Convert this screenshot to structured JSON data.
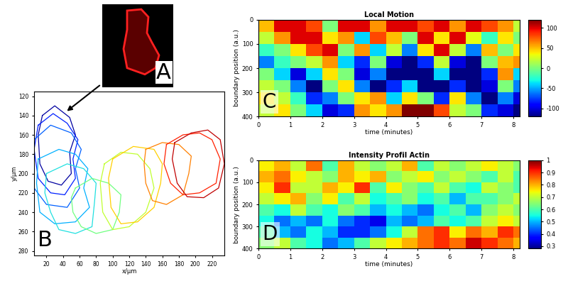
{
  "chart_data": [
    {
      "type": "image",
      "label": "A",
      "xlim": [
        0,
        100
      ],
      "ylim": [
        130,
        0
      ],
      "cell_outline": {
        "x": [
          35,
          55,
          65,
          63,
          70,
          80,
          75,
          60,
          35,
          30,
          35
        ],
        "y": [
          10,
          8,
          20,
          45,
          60,
          80,
          100,
          110,
          100,
          70,
          40
        ]
      }
    },
    {
      "type": "line",
      "label": "B",
      "xlabel": "x/μm",
      "ylabel": "y/μm",
      "xlim": [
        5,
        235
      ],
      "xticks": [
        20,
        40,
        60,
        80,
        100,
        120,
        140,
        160,
        180,
        200,
        220
      ],
      "ylim": [
        285,
        115
      ],
      "yticks": [
        120,
        140,
        160,
        180,
        200,
        220,
        240,
        260,
        280
      ],
      "series": [
        {
          "color": "#0000a0",
          "x": [
            15,
            30,
            48,
            55,
            48,
            50,
            38,
            22,
            12,
            10
          ],
          "y": [
            140,
            130,
            142,
            160,
            178,
            200,
            212,
            208,
            190,
            160
          ]
        },
        {
          "color": "#0020ff",
          "x": [
            10,
            28,
            45,
            58,
            52,
            55,
            42,
            25,
            10,
            5
          ],
          "y": [
            150,
            138,
            148,
            165,
            185,
            205,
            222,
            220,
            205,
            175
          ]
        },
        {
          "color": "#0060ff",
          "x": [
            5,
            25,
            50,
            62,
            55,
            60,
            45,
            20,
            5,
            3
          ],
          "y": [
            165,
            150,
            158,
            175,
            195,
            215,
            235,
            232,
            215,
            190
          ]
        },
        {
          "color": "#00b0ff",
          "x": [
            10,
            35,
            55,
            70,
            65,
            72,
            55,
            30,
            12,
            8
          ],
          "y": [
            185,
            175,
            180,
            195,
            215,
            235,
            250,
            252,
            240,
            210
          ]
        },
        {
          "color": "#20e0e0",
          "x": [
            20,
            45,
            65,
            80,
            78,
            75,
            55,
            35,
            25,
            18
          ],
          "y": [
            200,
            190,
            195,
            210,
            230,
            255,
            262,
            258,
            240,
            220
          ]
        },
        {
          "color": "#70ff80",
          "x": [
            55,
            75,
            95,
            110,
            108,
            100,
            80,
            62,
            52,
            50
          ],
          "y": [
            215,
            205,
            210,
            222,
            240,
            258,
            262,
            255,
            240,
            225
          ]
        },
        {
          "color": "#c0ff30",
          "x": [
            90,
            110,
            130,
            145,
            150,
            140,
            120,
            100,
            88,
            85
          ],
          "y": [
            190,
            178,
            180,
            195,
            215,
            240,
            255,
            258,
            240,
            210
          ]
        },
        {
          "color": "#ffd000",
          "x": [
            100,
            125,
            150,
            160,
            158,
            150,
            130,
            110,
            98,
            95
          ],
          "y": [
            185,
            172,
            175,
            190,
            210,
            235,
            250,
            252,
            235,
            205
          ]
        },
        {
          "color": "#ff8000",
          "x": [
            140,
            160,
            180,
            195,
            192,
            185,
            165,
            148,
            140,
            138
          ],
          "y": [
            175,
            168,
            170,
            182,
            200,
            222,
            232,
            228,
            210,
            190
          ]
        },
        {
          "color": "#ff2000",
          "x": [
            165,
            185,
            205,
            220,
            230,
            225,
            205,
            185,
            170,
            162
          ],
          "y": [
            170,
            160,
            158,
            165,
            185,
            210,
            220,
            222,
            210,
            190
          ]
        },
        {
          "color": "#c00000",
          "x": [
            175,
            195,
            215,
            230,
            235,
            228,
            210,
            190,
            178,
            172
          ],
          "y": [
            168,
            158,
            155,
            165,
            190,
            215,
            225,
            224,
            210,
            185
          ]
        }
      ]
    },
    {
      "type": "heatmap",
      "label": "C",
      "title": "Local Motion",
      "xlabel": "time (minutes)",
      "ylabel": "boundary position (a.u.)",
      "xlim": [
        0,
        8.2
      ],
      "xticks": [
        0,
        1,
        2,
        3,
        4,
        5,
        6,
        7,
        8
      ],
      "ylim": [
        400,
        0
      ],
      "yticks": [
        0,
        100,
        200,
        300,
        400
      ],
      "x_edges": [
        0,
        0.5,
        1,
        1.5,
        2,
        2.5,
        3,
        3.5,
        4,
        4.5,
        5,
        5.5,
        6,
        6.5,
        7,
        7.5,
        8,
        8.2
      ],
      "y_edges": [
        0,
        50,
        100,
        150,
        200,
        250,
        300,
        350,
        400
      ],
      "cells": [
        [
          50,
          100,
          100,
          80,
          0,
          100,
          100,
          60,
          100,
          100,
          80,
          100,
          60,
          100,
          80,
          60,
          20
        ],
        [
          20,
          60,
          100,
          100,
          40,
          60,
          -40,
          80,
          50,
          0,
          100,
          40,
          100,
          30,
          -20,
          40,
          0
        ],
        [
          -20,
          0,
          40,
          80,
          100,
          0,
          60,
          -40,
          20,
          -60,
          40,
          100,
          20,
          -60,
          50,
          0,
          40
        ],
        [
          -60,
          -20,
          0,
          20,
          60,
          -40,
          -80,
          0,
          -100,
          -120,
          -80,
          20,
          -100,
          -120,
          0,
          50,
          60
        ],
        [
          0,
          -40,
          -100,
          -40,
          40,
          0,
          -100,
          -60,
          -120,
          -120,
          -120,
          -40,
          -120,
          -120,
          -80,
          60,
          -40
        ],
        [
          20,
          0,
          -60,
          -120,
          0,
          40,
          -60,
          -120,
          -80,
          -40,
          -120,
          -120,
          -80,
          -120,
          -100,
          0,
          -60
        ],
        [
          40,
          20,
          -20,
          -80,
          -60,
          0,
          40,
          60,
          -40,
          40,
          0,
          -80,
          40,
          -60,
          -120,
          -60,
          -100
        ],
        [
          20,
          40,
          0,
          -40,
          -100,
          -80,
          60,
          40,
          60,
          120,
          120,
          80,
          20,
          0,
          -80,
          -100,
          -120
        ]
      ],
      "colorbar": {
        "range": [
          -120,
          120
        ],
        "ticks": [
          -100,
          -50,
          0,
          50,
          100
        ]
      }
    },
    {
      "type": "heatmap",
      "label": "D",
      "title": "Intensity Profil Actin",
      "xlabel": "time (minutes)",
      "ylabel": "boundary position (a.u.)",
      "xlim": [
        0,
        8.2
      ],
      "xticks": [
        0,
        1,
        2,
        3,
        4,
        5,
        6,
        7,
        8
      ],
      "ylim": [
        400,
        0
      ],
      "yticks": [
        0,
        100,
        200,
        300,
        400
      ],
      "x_edges": [
        0,
        0.5,
        1,
        1.5,
        2,
        2.5,
        3,
        3.5,
        4,
        4.5,
        5,
        5.5,
        6,
        6.5,
        7,
        7.5,
        8,
        8.2
      ],
      "y_edges": [
        0,
        50,
        100,
        150,
        200,
        250,
        300,
        350,
        400
      ],
      "cells": [
        [
          0.75,
          0.8,
          0.7,
          0.85,
          0.6,
          0.8,
          0.7,
          0.65,
          0.7,
          0.8,
          0.6,
          0.7,
          0.65,
          0.7,
          0.75,
          0.7,
          0.65
        ],
        [
          0.8,
          0.85,
          0.75,
          0.7,
          0.65,
          0.8,
          0.75,
          0.8,
          0.65,
          0.7,
          0.75,
          0.65,
          0.7,
          0.65,
          0.6,
          0.7,
          0.6
        ],
        [
          0.75,
          0.9,
          0.7,
          0.7,
          0.8,
          0.75,
          0.9,
          0.6,
          0.75,
          0.65,
          0.6,
          0.7,
          0.6,
          0.55,
          0.7,
          0.65,
          0.6
        ],
        [
          0.7,
          0.75,
          0.8,
          0.65,
          0.75,
          0.6,
          0.7,
          0.55,
          0.6,
          0.65,
          0.55,
          0.6,
          0.5,
          0.6,
          0.6,
          0.65,
          0.7
        ],
        [
          0.6,
          0.55,
          0.7,
          0.6,
          0.55,
          0.65,
          0.6,
          0.5,
          0.55,
          0.5,
          0.45,
          0.55,
          0.6,
          0.5,
          0.65,
          0.7,
          0.65
        ],
        [
          0.55,
          0.45,
          0.5,
          0.45,
          0.55,
          0.45,
          0.4,
          0.35,
          0.5,
          0.45,
          0.5,
          0.6,
          0.55,
          0.6,
          0.7,
          0.75,
          0.7
        ],
        [
          0.6,
          0.5,
          0.45,
          0.55,
          0.5,
          0.4,
          0.4,
          0.45,
          0.55,
          0.7,
          0.85,
          0.9,
          0.75,
          0.85,
          0.8,
          0.9,
          0.85
        ],
        [
          0.65,
          0.7,
          0.6,
          0.55,
          0.45,
          0.5,
          0.6,
          0.7,
          0.75,
          0.8,
          0.85,
          0.9,
          0.85,
          0.95,
          0.9,
          0.85,
          0.8
        ]
      ],
      "colorbar": {
        "range": [
          0.28,
          1
        ],
        "ticks": [
          0.3,
          0.4,
          0.5,
          0.6,
          0.7,
          0.8,
          0.9,
          1
        ]
      }
    }
  ]
}
